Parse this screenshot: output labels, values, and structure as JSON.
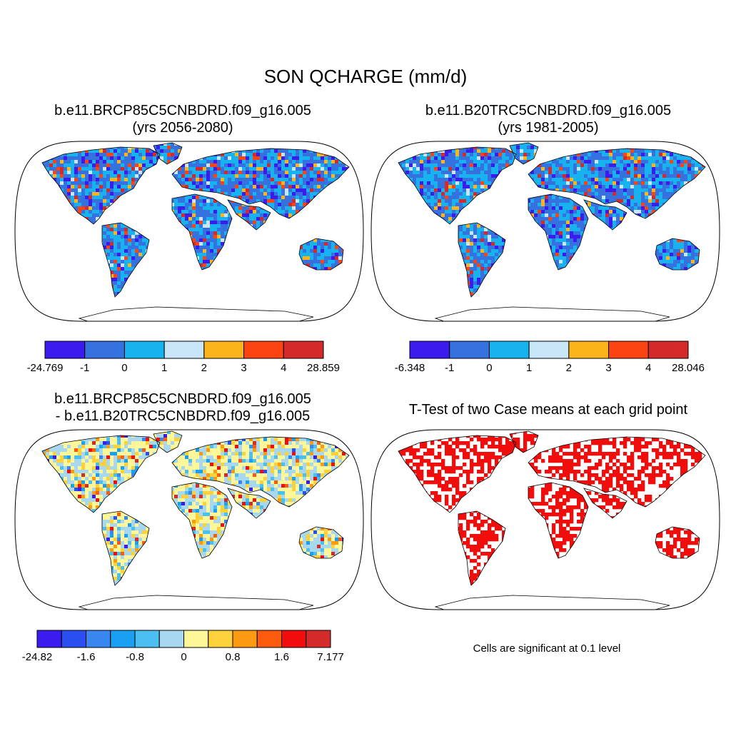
{
  "title": "SON QCHARGE (mm/d)",
  "panels": {
    "future": {
      "title_line1": "b.e11.BRCP85C5CNBDRD.f09_g16.005",
      "title_line2": "(yrs 2056-2080)",
      "colorbar": {
        "colors": [
          "#3a1cf0",
          "#3671e0",
          "#16b3f0",
          "#c8e6f7",
          "#fbb51b",
          "#fc4412",
          "#d42a2a"
        ],
        "labels": [
          "-24.769",
          "-1",
          "0",
          "1",
          "2",
          "3",
          "4",
          "28.859"
        ]
      }
    },
    "historical": {
      "title_line1": "b.e11.B20TRC5CNBDRD.f09_g16.005",
      "title_line2": "(yrs 1981-2005)",
      "colorbar": {
        "colors": [
          "#3a1cf0",
          "#3671e0",
          "#16b3f0",
          "#c8e6f7",
          "#fbb51b",
          "#fc4412",
          "#d42a2a"
        ],
        "labels": [
          "-6.348",
          "-1",
          "0",
          "1",
          "2",
          "3",
          "4",
          "28.046"
        ]
      }
    },
    "difference": {
      "title_line1": "b.e11.BRCP85C5CNBDRD.f09_g16.005",
      "title_line2": "- b.e11.B20TRC5CNBDRD.f09_g16.005",
      "colorbar": {
        "colors": [
          "#3a1cf0",
          "#2a4ef0",
          "#3a86f0",
          "#1aa0f2",
          "#4bbef2",
          "#a8d8f0",
          "#fdf79a",
          "#fcd13a",
          "#fc9b12",
          "#fc5a0d",
          "#f20d0d",
          "#d42a2a"
        ],
        "labels": [
          "-24.82",
          "-1.6",
          "-0.8",
          "0",
          "0.8",
          "1.6",
          "7.177"
        ]
      }
    },
    "ttest": {
      "title_line1": "T-Test of two Case means at each grid point",
      "note": "Cells are significant at 0.1 level",
      "sig_color": "#f20d0d"
    }
  }
}
